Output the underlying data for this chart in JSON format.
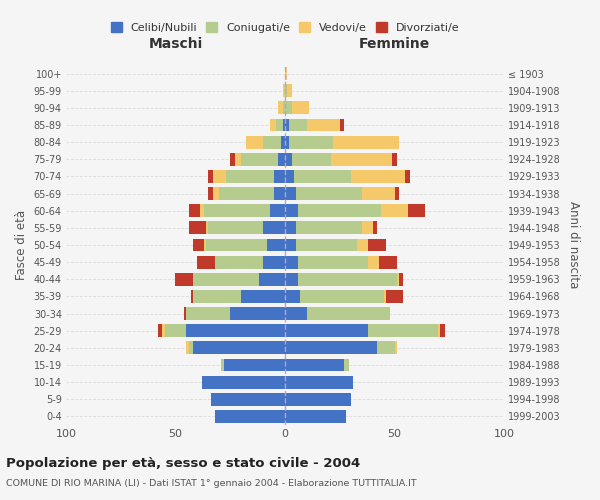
{
  "age_groups": [
    "0-4",
    "5-9",
    "10-14",
    "15-19",
    "20-24",
    "25-29",
    "30-34",
    "35-39",
    "40-44",
    "45-49",
    "50-54",
    "55-59",
    "60-64",
    "65-69",
    "70-74",
    "75-79",
    "80-84",
    "85-89",
    "90-94",
    "95-99",
    "100+"
  ],
  "birth_years": [
    "1999-2003",
    "1994-1998",
    "1989-1993",
    "1984-1988",
    "1979-1983",
    "1974-1978",
    "1969-1973",
    "1964-1968",
    "1959-1963",
    "1954-1958",
    "1949-1953",
    "1944-1948",
    "1939-1943",
    "1934-1938",
    "1929-1933",
    "1924-1928",
    "1919-1923",
    "1914-1918",
    "1909-1913",
    "1904-1908",
    "≤ 1903"
  ],
  "males": {
    "celibe": [
      32,
      34,
      38,
      28,
      42,
      45,
      25,
      20,
      12,
      10,
      8,
      10,
      7,
      5,
      5,
      3,
      2,
      1,
      0,
      0,
      0
    ],
    "coniugato": [
      0,
      0,
      0,
      1,
      2,
      10,
      20,
      22,
      30,
      22,
      28,
      25,
      30,
      25,
      22,
      17,
      8,
      3,
      1,
      0,
      0
    ],
    "vedovo": [
      0,
      0,
      0,
      0,
      1,
      1,
      0,
      0,
      0,
      0,
      1,
      1,
      2,
      3,
      6,
      3,
      8,
      3,
      2,
      1,
      0
    ],
    "divorziato": [
      0,
      0,
      0,
      0,
      0,
      2,
      1,
      1,
      8,
      8,
      5,
      8,
      5,
      2,
      2,
      2,
      0,
      0,
      0,
      0,
      0
    ]
  },
  "females": {
    "nubile": [
      28,
      30,
      31,
      27,
      42,
      38,
      10,
      7,
      6,
      6,
      5,
      5,
      6,
      5,
      4,
      3,
      2,
      2,
      0,
      0,
      0
    ],
    "coniugata": [
      0,
      0,
      0,
      2,
      8,
      32,
      38,
      38,
      45,
      32,
      28,
      30,
      38,
      30,
      26,
      18,
      20,
      8,
      3,
      1,
      0
    ],
    "vedova": [
      0,
      0,
      0,
      0,
      1,
      1,
      0,
      1,
      1,
      5,
      5,
      5,
      12,
      15,
      25,
      28,
      30,
      15,
      8,
      2,
      1
    ],
    "divorziata": [
      0,
      0,
      0,
      0,
      0,
      2,
      0,
      8,
      2,
      8,
      8,
      2,
      8,
      2,
      2,
      2,
      0,
      2,
      0,
      0,
      0
    ]
  },
  "colors": {
    "celibe": "#4472C4",
    "coniugato": "#b5cc8e",
    "vedovo": "#f5c96a",
    "divorziato": "#c0392b"
  },
  "title": "Popolazione per età, sesso e stato civile - 2004",
  "subtitle": "COMUNE DI RIO MARINA (LI) - Dati ISTAT 1° gennaio 2004 - Elaborazione TUTTITALIA.IT",
  "xlabel_left": "Maschi",
  "xlabel_right": "Femmine",
  "ylabel_left": "Fasce di età",
  "ylabel_right": "Anni di nascita",
  "xlim": 100,
  "bg_color": "#f5f5f5",
  "grid_color": "#dddddd",
  "legend_labels": [
    "Celibi/Nubili",
    "Coniugati/e",
    "Vedovi/e",
    "Divorziati/e"
  ]
}
